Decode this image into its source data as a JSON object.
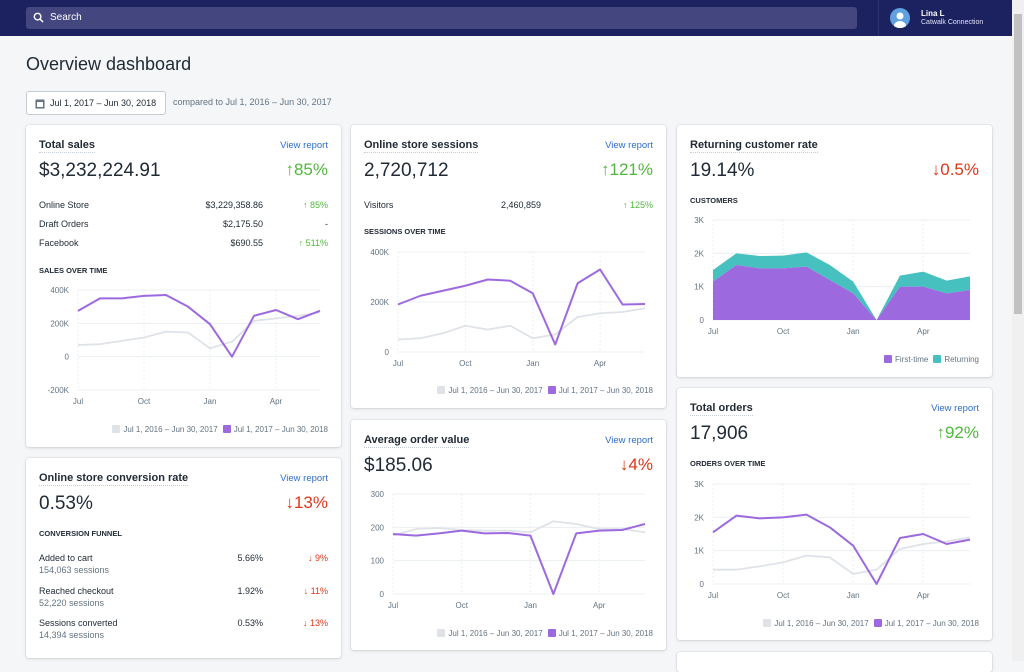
{
  "topbar": {
    "search_placeholder": "Search",
    "user_name": "Lina L",
    "store_name": "Catwalk Connection"
  },
  "page": {
    "title": "Overview dashboard",
    "date_range": "Jul 1, 2017 – Jun 30, 2018",
    "compare_text": "compared to Jul 1, 2016 – Jun 30, 2017"
  },
  "colors": {
    "current": "#9c6ade",
    "previous": "#dfe3e8",
    "returning": "#47c1bf",
    "up": "#50b83c",
    "down": "#de3618",
    "link": "#2c6ecb",
    "topbar": "#1c2260"
  },
  "legend": {
    "previous": "Jul 1, 2016 – Jun 30, 2017",
    "current": "Jul 1, 2017 – Jun 30, 2018"
  },
  "view_report": "View report",
  "total_sales": {
    "title": "Total sales",
    "value": "$3,232,224.91",
    "delta": "↑85%",
    "subtitle": "Sales over time",
    "rows": [
      {
        "label": "Online Store",
        "value": "$3,229,358.86",
        "delta": "↑ 85%"
      },
      {
        "label": "Draft Orders",
        "value": "$2,175.50",
        "delta": "-"
      },
      {
        "label": "Facebook",
        "value": "$690.55",
        "delta": "↑ 511%"
      }
    ]
  },
  "conversion": {
    "title": "Online store conversion rate",
    "value": "0.53%",
    "delta": "↓13%",
    "subtitle": "Conversion funnel",
    "rows": [
      {
        "label": "Added to cart",
        "sessions": "154,063 sessions",
        "value": "5.66%",
        "delta": "↓ 9%"
      },
      {
        "label": "Reached checkout",
        "sessions": "52,220 sessions",
        "value": "1.92%",
        "delta": "↓ 11%"
      },
      {
        "label": "Sessions converted",
        "sessions": "14,394 sessions",
        "value": "0.53%",
        "delta": "↓ 13%"
      }
    ]
  },
  "sessions": {
    "title": "Online store sessions",
    "value": "2,720,712",
    "delta": "↑121%",
    "subtitle": "Sessions over time",
    "rows": [
      {
        "label": "Visitors",
        "value": "2,460,859",
        "delta": "↑ 125%"
      }
    ]
  },
  "aov": {
    "title": "Average order value",
    "value": "$185.06",
    "delta": "↓4%"
  },
  "returning": {
    "title": "Returning customer rate",
    "value": "19.14%",
    "delta": "↓0.5%",
    "subtitle": "Customers",
    "legend_first": "First-time",
    "legend_returning": "Returning"
  },
  "orders": {
    "title": "Total orders",
    "value": "17,906",
    "delta": "↑92%",
    "subtitle": "Orders over time"
  },
  "chart_data": [
    {
      "id": "sales",
      "type": "line",
      "categories": [
        "Jul",
        "Aug",
        "Sep",
        "Oct",
        "Nov",
        "Dec",
        "Jan",
        "Feb",
        "Mar",
        "Apr",
        "May",
        "Jun"
      ],
      "xticks": [
        "Jul",
        "Oct",
        "Jan",
        "Apr"
      ],
      "yticks": [
        "-200K",
        "0",
        "200K",
        "400K"
      ],
      "ylim": [
        -200000,
        400000
      ],
      "grid": true,
      "series": [
        {
          "name": "Jul 1, 2016 – Jun 30, 2017",
          "values": [
            70000,
            75000,
            95000,
            115000,
            150000,
            145000,
            50000,
            90000,
            215000,
            230000,
            245000,
            265000
          ]
        },
        {
          "name": "Jul 1, 2017 – Jun 30, 2018",
          "values": [
            275000,
            350000,
            350000,
            365000,
            370000,
            300000,
            195000,
            0,
            245000,
            280000,
            225000,
            275000
          ]
        }
      ]
    },
    {
      "id": "sessions",
      "type": "line",
      "categories": [
        "Jul",
        "Aug",
        "Sep",
        "Oct",
        "Nov",
        "Dec",
        "Jan",
        "Feb",
        "Mar",
        "Apr",
        "May",
        "Jun"
      ],
      "xticks": [
        "Jul",
        "Oct",
        "Jan",
        "Apr"
      ],
      "yticks": [
        "0",
        "200K",
        "400K"
      ],
      "ylim": [
        0,
        400000
      ],
      "grid": true,
      "series": [
        {
          "name": "Jul 1, 2016 – Jun 30, 2017",
          "values": [
            50000,
            55000,
            75000,
            105000,
            90000,
            105000,
            55000,
            70000,
            140000,
            155000,
            160000,
            175000
          ]
        },
        {
          "name": "Jul 1, 2017 – Jun 30, 2018",
          "values": [
            190000,
            225000,
            245000,
            265000,
            290000,
            285000,
            235000,
            30000,
            275000,
            330000,
            190000,
            192000
          ]
        }
      ]
    },
    {
      "id": "customers",
      "type": "area",
      "stacked": true,
      "categories": [
        "Jul",
        "Aug",
        "Sep",
        "Oct",
        "Nov",
        "Dec",
        "Jan",
        "Feb",
        "Mar",
        "Apr",
        "May",
        "Jun"
      ],
      "xticks": [
        "Jul",
        "Oct",
        "Jan",
        "Apr"
      ],
      "yticks": [
        "0",
        "1K",
        "2K",
        "3K"
      ],
      "ylim": [
        0,
        3000
      ],
      "grid": true,
      "legend": "bottom-right",
      "series": [
        {
          "name": "First-time",
          "values": [
            1150,
            1650,
            1550,
            1550,
            1600,
            1200,
            800,
            0,
            1000,
            1000,
            800,
            900
          ]
        },
        {
          "name": "Returning",
          "values": [
            350,
            350,
            370,
            380,
            430,
            450,
            350,
            0,
            330,
            450,
            380,
            410
          ]
        }
      ]
    },
    {
      "id": "aov",
      "type": "line",
      "categories": [
        "Jul",
        "Aug",
        "Sep",
        "Oct",
        "Nov",
        "Dec",
        "Jan",
        "Feb",
        "Mar",
        "Apr",
        "May",
        "Jun"
      ],
      "xticks": [
        "Jul",
        "Oct",
        "Jan",
        "Apr"
      ],
      "yticks": [
        "0",
        "100",
        "200",
        "300"
      ],
      "ylim": [
        0,
        300
      ],
      "grid": true,
      "series": [
        {
          "name": "Jul 1, 2016 – Jun 30, 2017",
          "values": [
            175,
            195,
            198,
            192,
            190,
            190,
            185,
            218,
            210,
            195,
            195,
            185
          ]
        },
        {
          "name": "Jul 1, 2017 – Jun 30, 2018",
          "values": [
            180,
            175,
            182,
            190,
            182,
            183,
            175,
            0,
            182,
            190,
            192,
            210
          ]
        }
      ]
    },
    {
      "id": "orders",
      "type": "line",
      "categories": [
        "Jul",
        "Aug",
        "Sep",
        "Oct",
        "Nov",
        "Dec",
        "Jan",
        "Feb",
        "Mar",
        "Apr",
        "May",
        "Jun"
      ],
      "xticks": [
        "Jul",
        "Oct",
        "Jan",
        "Apr"
      ],
      "yticks": [
        "0",
        "1K",
        "2K",
        "3K"
      ],
      "ylim": [
        0,
        3000
      ],
      "grid": true,
      "series": [
        {
          "name": "Jul 1, 2016 – Jun 30, 2017",
          "values": [
            430,
            430,
            530,
            650,
            850,
            800,
            300,
            430,
            1050,
            1200,
            1280,
            1400
          ]
        },
        {
          "name": "Jul 1, 2017 – Jun 30, 2018",
          "values": [
            1550,
            2050,
            1970,
            2000,
            2080,
            1700,
            1150,
            0,
            1380,
            1500,
            1200,
            1330
          ]
        }
      ]
    }
  ]
}
